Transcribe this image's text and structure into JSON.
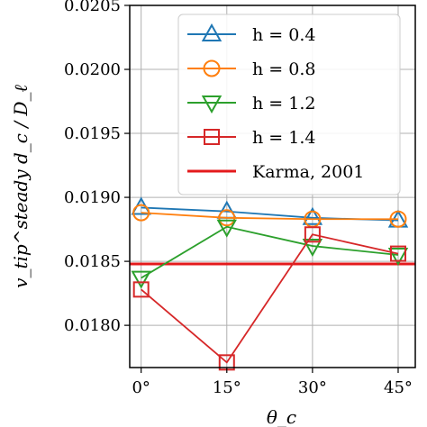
{
  "chart_data": {
    "type": "line",
    "xlabel": "θ_c",
    "ylabel": "v_tip^steady d_c / D_ℓ",
    "x": [
      0,
      15,
      30,
      45
    ],
    "xtick_labels": [
      "0°",
      "15°",
      "30°",
      "45°"
    ],
    "xlim": [
      -2,
      48
    ],
    "ylim": [
      0.01767,
      0.0205
    ],
    "yticks": [
      0.018,
      0.0185,
      0.019,
      0.0195,
      0.02,
      0.0205
    ],
    "ytick_labels": [
      "0.0180",
      "0.0185",
      "0.0190",
      "0.0195",
      "0.0200",
      "0.0205"
    ],
    "grid": true,
    "legend_position": "top-right",
    "series": [
      {
        "name": "h = 0.4",
        "color": "#1f77b4",
        "marker": "triangle-up",
        "values": [
          0.01892,
          0.01889,
          0.01884,
          0.01882
        ]
      },
      {
        "name": "h = 0.8",
        "color": "#ff7f0e",
        "marker": "circle",
        "values": [
          0.01888,
          0.01884,
          0.01883,
          0.01883
        ]
      },
      {
        "name": "h = 1.2",
        "color": "#2ca02c",
        "marker": "triangle-down",
        "values": [
          0.01837,
          0.01877,
          0.01862,
          0.01855
        ]
      },
      {
        "name": "h = 1.4",
        "color": "#d62728",
        "marker": "square",
        "values": [
          0.01828,
          0.01771,
          0.01871,
          0.01856
        ]
      }
    ],
    "reference_line": {
      "name": "Karma, 2001",
      "color": "#e41a1c",
      "value": 0.01848
    }
  }
}
